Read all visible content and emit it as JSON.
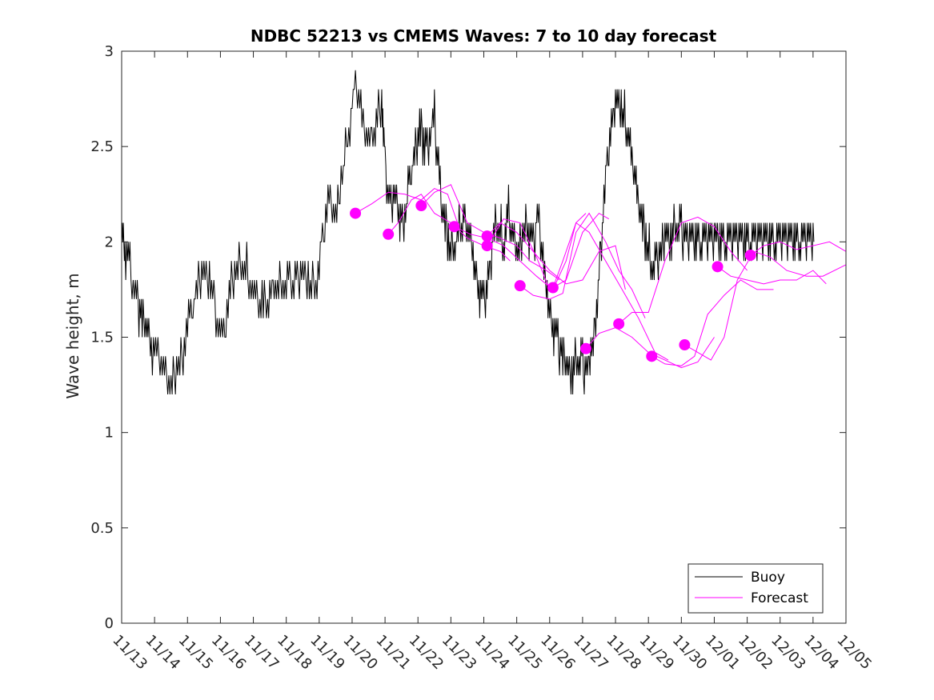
{
  "chart_data": {
    "type": "line",
    "title": "NDBC 52213 vs CMEMS Waves: 7 to 10 day forecast",
    "xlabel": "",
    "ylabel": "Wave height, m",
    "xlim": [
      0,
      22
    ],
    "ylim": [
      0,
      3
    ],
    "x_tick_labels": [
      "11/13",
      "11/14",
      "11/15",
      "11/16",
      "11/17",
      "11/18",
      "11/19",
      "11/20",
      "11/21",
      "11/22",
      "11/23",
      "11/24",
      "11/25",
      "11/26",
      "11/27",
      "11/28",
      "11/29",
      "11/30",
      "12/01",
      "12/02",
      "12/03",
      "12/04",
      "12/05"
    ],
    "y_ticks": [
      0,
      0.5,
      1,
      1.5,
      2,
      2.5,
      3
    ],
    "y_tick_labels": [
      "0",
      "0.5",
      "1",
      "1.5",
      "2",
      "2.5",
      "3"
    ],
    "grid": false,
    "legend_position": "bottom-right",
    "colors": {
      "buoy": "#000000",
      "forecast": "#ff00ff"
    },
    "series": [
      {
        "name": "Buoy",
        "x_day_offsets": [
          0,
          0.1,
          0.25,
          0.45,
          0.6,
          0.75,
          0.9,
          1.1,
          1.3,
          1.5,
          1.7,
          1.9,
          2.1,
          2.3,
          2.5,
          2.7,
          2.9,
          3.1,
          3.3,
          3.5,
          3.7,
          3.9,
          4.1,
          4.3,
          4.5,
          4.7,
          4.9,
          5.1,
          5.3,
          5.5,
          5.7,
          5.9,
          6.1,
          6.3,
          6.5,
          6.7,
          6.9,
          7.1,
          7.3,
          7.5,
          7.7,
          7.9,
          8.0,
          8.15,
          8.3,
          8.45,
          8.6,
          8.75,
          8.9,
          9.05,
          9.2,
          9.35,
          9.5,
          9.65,
          9.8,
          9.95,
          10.1,
          10.25,
          10.4,
          10.55,
          10.7,
          10.85,
          11.0,
          11.15,
          11.3,
          11.45,
          11.6,
          11.75,
          11.9,
          12.05,
          12.2,
          12.35,
          12.5,
          12.65,
          12.8,
          12.95,
          13.1,
          13.25,
          13.4,
          13.55,
          13.7,
          13.85,
          14.0,
          14.15,
          14.3,
          14.45,
          14.6,
          14.75,
          14.9,
          15.05,
          15.2,
          15.35,
          15.5,
          15.65,
          15.8,
          15.95,
          16.1,
          16.25,
          16.4,
          16.55,
          16.7,
          16.85,
          17.0,
          17.15,
          17.3,
          17.45,
          17.6,
          17.75,
          17.9,
          18.05,
          18.2,
          18.35,
          18.5,
          18.65,
          18.8,
          18.95,
          19.1,
          19.25,
          19.4,
          19.55,
          19.7,
          19.85,
          20.0,
          20.15,
          20.3,
          20.45,
          20.6,
          20.75,
          20.9,
          21.05
        ],
        "values": [
          2.1,
          1.95,
          1.85,
          1.7,
          1.6,
          1.55,
          1.45,
          1.4,
          1.3,
          1.25,
          1.35,
          1.45,
          1.6,
          1.75,
          1.85,
          1.8,
          1.6,
          1.5,
          1.75,
          1.85,
          1.9,
          1.8,
          1.7,
          1.65,
          1.7,
          1.8,
          1.75,
          1.75,
          1.8,
          1.85,
          1.8,
          1.75,
          2.0,
          2.2,
          2.1,
          2.35,
          2.6,
          2.8,
          2.65,
          2.5,
          2.6,
          2.75,
          2.4,
          2.2,
          2.25,
          2.1,
          2.15,
          2.3,
          2.45,
          2.6,
          2.5,
          2.55,
          2.65,
          2.3,
          2.1,
          2.0,
          1.95,
          2.05,
          2.1,
          2.05,
          1.9,
          1.75,
          1.65,
          1.8,
          2.05,
          2.1,
          2.0,
          2.15,
          2.0,
          1.95,
          2.1,
          2.05,
          2.0,
          2.15,
          1.9,
          1.7,
          1.55,
          1.45,
          1.4,
          1.35,
          1.3,
          1.4,
          1.35,
          1.3,
          1.45,
          1.7,
          2.1,
          2.4,
          2.6,
          2.75,
          2.7,
          2.6,
          2.4,
          2.25,
          2.1,
          2.0,
          1.9,
          1.85,
          1.95,
          2.05,
          2.0,
          2.1,
          2.05,
          2.0,
          2.0,
          2.0,
          2.0,
          2.0,
          2.0,
          2.0,
          2.0,
          2.0,
          2.0,
          2.0,
          2.0,
          2.0,
          2.0,
          2.0,
          2.0,
          2.0,
          2.0,
          2.0,
          2.0,
          2.0,
          2.0,
          2.0,
          2.0,
          2.0,
          2.0,
          2.0
        ]
      },
      {
        "name": "Forecast",
        "runs": [
          {
            "x": [
              7.1,
              7.6,
              8.1,
              8.6,
              9.1,
              9.5,
              9.9,
              10.2
            ],
            "y": [
              2.15,
              2.2,
              2.26,
              2.25,
              2.22,
              2.28,
              2.25,
              2.1
            ]
          },
          {
            "x": [
              8.1,
              8.4,
              8.8,
              9.1,
              9.5,
              10.0,
              10.5,
              11.0,
              11.5,
              11.8
            ],
            "y": [
              2.04,
              2.1,
              2.22,
              2.25,
              2.15,
              2.1,
              2.02,
              1.98,
              1.95,
              1.9
            ]
          },
          {
            "x": [
              9.1,
              9.5,
              10.0,
              10.5,
              11.0,
              11.5,
              12.0,
              12.4,
              12.9,
              13.3
            ],
            "y": [
              2.19,
              2.26,
              2.3,
              2.1,
              2.05,
              2.02,
              1.98,
              1.9,
              1.85,
              1.8
            ]
          },
          {
            "x": [
              10.1,
              10.6,
              11.1,
              11.6,
              12.1,
              12.6,
              13.1,
              13.5,
              13.8,
              14.1
            ],
            "y": [
              2.08,
              2.04,
              2.02,
              1.98,
              1.9,
              1.82,
              1.75,
              1.9,
              2.1,
              2.15
            ]
          },
          {
            "x": [
              11.1,
              11.5,
              12.0,
              12.5,
              13.0,
              13.5,
              14.0,
              14.5,
              15.0,
              15.3
            ],
            "y": [
              2.03,
              2.1,
              2.05,
              1.95,
              1.85,
              1.78,
              1.8,
              1.95,
              1.98,
              1.75
            ]
          },
          {
            "x": [
              11.1,
              11.6,
              12.1,
              12.6,
              13.0,
              13.5,
              14.0,
              14.5,
              14.8
            ],
            "y": [
              1.98,
              2.12,
              2.1,
              1.92,
              1.75,
              1.8,
              2.05,
              2.15,
              2.12
            ]
          },
          {
            "x": [
              12.1,
              12.5,
              13.0,
              13.4,
              13.8,
              14.2,
              14.7,
              15.1,
              15.5,
              15.9
            ],
            "y": [
              1.77,
              1.72,
              1.7,
              1.73,
              2.05,
              2.15,
              2.0,
              1.85,
              1.75,
              1.6
            ]
          },
          {
            "x": [
              13.1,
              13.4,
              13.8,
              14.2,
              14.7,
              15.2,
              15.7,
              16.2,
              16.6
            ],
            "y": [
              1.76,
              1.9,
              2.1,
              2.05,
              1.9,
              1.75,
              1.6,
              1.42,
              1.38
            ]
          },
          {
            "x": [
              14.1,
              14.5,
              15.0,
              15.5,
              16.0,
              16.5,
              17.0,
              17.5,
              18.0
            ],
            "y": [
              1.44,
              1.52,
              1.55,
              1.5,
              1.42,
              1.38,
              1.34,
              1.37,
              1.5
            ]
          },
          {
            "x": [
              15.1,
              15.5,
              16.0,
              16.5,
              17.0,
              17.5,
              18.0,
              18.5,
              19.0
            ],
            "y": [
              1.57,
              1.63,
              1.63,
              1.9,
              2.1,
              2.13,
              2.08,
              1.95,
              1.85
            ]
          },
          {
            "x": [
              16.1,
              16.5,
              17.0,
              17.4,
              17.8,
              18.3,
              18.8,
              19.3,
              19.8
            ],
            "y": [
              1.4,
              1.36,
              1.35,
              1.4,
              1.62,
              1.72,
              1.8,
              1.75,
              1.75
            ]
          },
          {
            "x": [
              17.1,
              17.5,
              17.9,
              18.3,
              18.7,
              19.2,
              19.7,
              20.2,
              20.8,
              21.3,
              22.0
            ],
            "y": [
              1.46,
              1.42,
              1.38,
              1.5,
              1.8,
              1.95,
              1.92,
              1.85,
              1.82,
              1.82,
              1.88
            ]
          },
          {
            "x": [
              18.1,
              18.5,
              19.0,
              19.5,
              20.0,
              20.5,
              21.0,
              21.4
            ],
            "y": [
              1.87,
              1.82,
              1.8,
              1.78,
              1.8,
              1.8,
              1.85,
              1.78
            ]
          },
          {
            "x": [
              19.1,
              19.5,
              20.0,
              20.5,
              21.0,
              21.5,
              22.0
            ],
            "y": [
              1.93,
              1.98,
              2.0,
              1.96,
              1.98,
              2.0,
              1.95
            ]
          }
        ],
        "markers": [
          {
            "x": 7.1,
            "y": 2.15
          },
          {
            "x": 8.1,
            "y": 2.04
          },
          {
            "x": 9.1,
            "y": 2.19
          },
          {
            "x": 10.1,
            "y": 2.08
          },
          {
            "x": 11.1,
            "y": 2.03
          },
          {
            "x": 11.1,
            "y": 1.98
          },
          {
            "x": 12.1,
            "y": 1.77
          },
          {
            "x": 13.1,
            "y": 1.76
          },
          {
            "x": 14.1,
            "y": 1.44
          },
          {
            "x": 15.1,
            "y": 1.57
          },
          {
            "x": 16.1,
            "y": 1.4
          },
          {
            "x": 17.1,
            "y": 1.46
          },
          {
            "x": 18.1,
            "y": 1.87
          },
          {
            "x": 19.1,
            "y": 1.93
          }
        ]
      }
    ],
    "legend": [
      "Buoy",
      "Forecast"
    ]
  }
}
